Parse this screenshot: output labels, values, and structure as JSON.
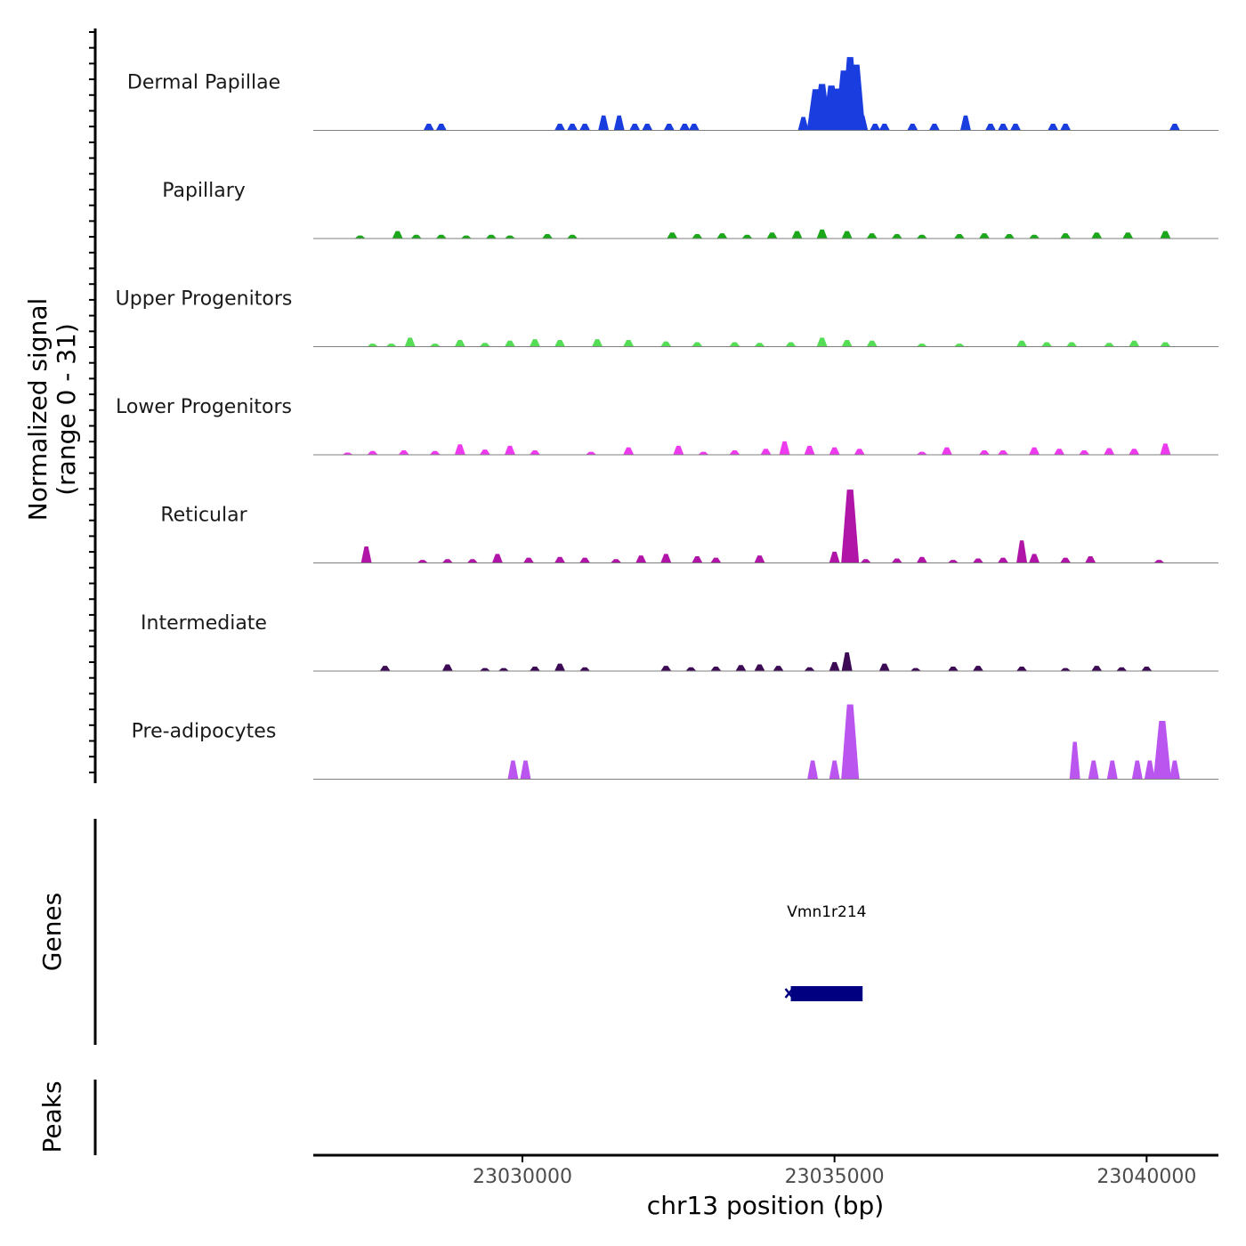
{
  "chart_data": {
    "type": "area",
    "title": "",
    "ylabel_line1": "Normalized signal",
    "ylabel_line2": "(range 0 - 31)",
    "genes_label": "Genes",
    "peaks_label": "Peaks",
    "xlabel": "chr13 position (bp)",
    "xlim": [
      23026650,
      23041150
    ],
    "ylim": [
      0,
      31
    ],
    "x_ticks": [
      23030000,
      23035000,
      23040000
    ],
    "x_tick_labels": [
      "23030000",
      "23035000",
      "23040000"
    ],
    "tracks": [
      {
        "name": "Dermal Papillae",
        "color": "#1a3de0",
        "peaks": [
          [
            23028500,
            0.09
          ],
          [
            23028700,
            0.09
          ],
          [
            23030600,
            0.09
          ],
          [
            23030800,
            0.09
          ],
          [
            23031000,
            0.09
          ],
          [
            23031300,
            0.2
          ],
          [
            23031550,
            0.2
          ],
          [
            23031800,
            0.09
          ],
          [
            23032000,
            0.09
          ],
          [
            23032350,
            0.09
          ],
          [
            23032600,
            0.09
          ],
          [
            23032750,
            0.09
          ],
          [
            23034500,
            0.18
          ],
          [
            23034700,
            0.55
          ],
          [
            23034800,
            0.62
          ],
          [
            23034950,
            0.6
          ],
          [
            23035050,
            0.56
          ],
          [
            23035150,
            0.8
          ],
          [
            23035250,
            0.98
          ],
          [
            23035350,
            0.88
          ],
          [
            23035450,
            0.2
          ],
          [
            23035650,
            0.09
          ],
          [
            23035800,
            0.09
          ],
          [
            23036250,
            0.09
          ],
          [
            23036600,
            0.09
          ],
          [
            23037100,
            0.2
          ],
          [
            23037500,
            0.09
          ],
          [
            23037700,
            0.09
          ],
          [
            23037900,
            0.09
          ],
          [
            23038500,
            0.09
          ],
          [
            23038700,
            0.09
          ],
          [
            23040450,
            0.09
          ]
        ]
      },
      {
        "name": "Papillary",
        "color": "#1aa81a",
        "peaks": [
          [
            23027400,
            0.04
          ],
          [
            23028000,
            0.1
          ],
          [
            23028300,
            0.05
          ],
          [
            23028700,
            0.05
          ],
          [
            23029100,
            0.04
          ],
          [
            23029500,
            0.05
          ],
          [
            23029800,
            0.04
          ],
          [
            23030400,
            0.06
          ],
          [
            23030800,
            0.05
          ],
          [
            23032400,
            0.08
          ],
          [
            23032800,
            0.06
          ],
          [
            23033200,
            0.07
          ],
          [
            23033600,
            0.05
          ],
          [
            23034000,
            0.08
          ],
          [
            23034400,
            0.1
          ],
          [
            23034800,
            0.12
          ],
          [
            23035200,
            0.1
          ],
          [
            23035600,
            0.07
          ],
          [
            23036000,
            0.06
          ],
          [
            23036400,
            0.05
          ],
          [
            23037000,
            0.06
          ],
          [
            23037400,
            0.07
          ],
          [
            23037800,
            0.06
          ],
          [
            23038200,
            0.05
          ],
          [
            23038700,
            0.07
          ],
          [
            23039200,
            0.08
          ],
          [
            23039700,
            0.08
          ],
          [
            23040300,
            0.1
          ]
        ]
      },
      {
        "name": "Upper Progenitors",
        "color": "#55dd55",
        "peaks": [
          [
            23027600,
            0.04
          ],
          [
            23027900,
            0.04
          ],
          [
            23028200,
            0.12
          ],
          [
            23028600,
            0.04
          ],
          [
            23029000,
            0.09
          ],
          [
            23029400,
            0.05
          ],
          [
            23029800,
            0.08
          ],
          [
            23030200,
            0.1
          ],
          [
            23030600,
            0.09
          ],
          [
            23031200,
            0.1
          ],
          [
            23031700,
            0.09
          ],
          [
            23032300,
            0.07
          ],
          [
            23032800,
            0.06
          ],
          [
            23033400,
            0.06
          ],
          [
            23033800,
            0.05
          ],
          [
            23034300,
            0.06
          ],
          [
            23034800,
            0.12
          ],
          [
            23035200,
            0.09
          ],
          [
            23035600,
            0.08
          ],
          [
            23036400,
            0.04
          ],
          [
            23037000,
            0.04
          ],
          [
            23038000,
            0.08
          ],
          [
            23038400,
            0.06
          ],
          [
            23038800,
            0.06
          ],
          [
            23039400,
            0.05
          ],
          [
            23039800,
            0.08
          ],
          [
            23040300,
            0.06
          ]
        ]
      },
      {
        "name": "Lower Progenitors",
        "color": "#ee3aee",
        "peaks": [
          [
            23027200,
            0.03
          ],
          [
            23027600,
            0.05
          ],
          [
            23028100,
            0.06
          ],
          [
            23028600,
            0.05
          ],
          [
            23029000,
            0.14
          ],
          [
            23029400,
            0.07
          ],
          [
            23029800,
            0.12
          ],
          [
            23030200,
            0.06
          ],
          [
            23031100,
            0.04
          ],
          [
            23031700,
            0.1
          ],
          [
            23032500,
            0.12
          ],
          [
            23032900,
            0.04
          ],
          [
            23033400,
            0.06
          ],
          [
            23033900,
            0.08
          ],
          [
            23034200,
            0.18
          ],
          [
            23034600,
            0.12
          ],
          [
            23035000,
            0.1
          ],
          [
            23035400,
            0.08
          ],
          [
            23036400,
            0.04
          ],
          [
            23036800,
            0.1
          ],
          [
            23037400,
            0.06
          ],
          [
            23037700,
            0.06
          ],
          [
            23038200,
            0.1
          ],
          [
            23038600,
            0.08
          ],
          [
            23039000,
            0.06
          ],
          [
            23039400,
            0.09
          ],
          [
            23039800,
            0.08
          ],
          [
            23040300,
            0.15
          ]
        ]
      },
      {
        "name": "Reticular",
        "color": "#b015a8",
        "peaks": [
          [
            23027500,
            0.22
          ],
          [
            23028400,
            0.04
          ],
          [
            23028800,
            0.05
          ],
          [
            23029200,
            0.05
          ],
          [
            23029600,
            0.12
          ],
          [
            23030100,
            0.07
          ],
          [
            23030600,
            0.08
          ],
          [
            23031000,
            0.07
          ],
          [
            23031500,
            0.05
          ],
          [
            23031900,
            0.1
          ],
          [
            23032300,
            0.12
          ],
          [
            23032800,
            0.09
          ],
          [
            23033100,
            0.07
          ],
          [
            23033800,
            0.1
          ],
          [
            23035000,
            0.15
          ],
          [
            23035250,
            0.98
          ],
          [
            23035500,
            0.05
          ],
          [
            23036000,
            0.06
          ],
          [
            23036400,
            0.08
          ],
          [
            23036900,
            0.04
          ],
          [
            23037300,
            0.06
          ],
          [
            23037700,
            0.07
          ],
          [
            23038000,
            0.3
          ],
          [
            23038200,
            0.12
          ],
          [
            23038700,
            0.07
          ],
          [
            23039100,
            0.09
          ],
          [
            23040200,
            0.04
          ]
        ]
      },
      {
        "name": "Intermediate",
        "color": "#3d0a55",
        "peaks": [
          [
            23027800,
            0.07
          ],
          [
            23028800,
            0.09
          ],
          [
            23029400,
            0.04
          ],
          [
            23029700,
            0.04
          ],
          [
            23030200,
            0.06
          ],
          [
            23030600,
            0.1
          ],
          [
            23031000,
            0.05
          ],
          [
            23032300,
            0.07
          ],
          [
            23032700,
            0.05
          ],
          [
            23033100,
            0.06
          ],
          [
            23033500,
            0.08
          ],
          [
            23033800,
            0.09
          ],
          [
            23034100,
            0.07
          ],
          [
            23034600,
            0.05
          ],
          [
            23035000,
            0.12
          ],
          [
            23035200,
            0.25
          ],
          [
            23035800,
            0.1
          ],
          [
            23036300,
            0.04
          ],
          [
            23036900,
            0.06
          ],
          [
            23037300,
            0.07
          ],
          [
            23038000,
            0.06
          ],
          [
            23038700,
            0.04
          ],
          [
            23039200,
            0.07
          ],
          [
            23039600,
            0.05
          ],
          [
            23040000,
            0.06
          ]
        ]
      },
      {
        "name": "Pre-adipocytes",
        "color": "#bb55f0",
        "peaks": [
          [
            23029850,
            0.25
          ],
          [
            23030050,
            0.25
          ],
          [
            23034650,
            0.25
          ],
          [
            23035000,
            0.25
          ],
          [
            23035250,
            1.0
          ],
          [
            23038850,
            0.5
          ],
          [
            23039150,
            0.25
          ],
          [
            23039450,
            0.25
          ],
          [
            23039850,
            0.25
          ],
          [
            23040050,
            0.25
          ],
          [
            23040250,
            0.78
          ],
          [
            23040450,
            0.25
          ]
        ]
      }
    ],
    "genes": [
      {
        "name": "Vmn1r214",
        "start": 23034300,
        "end": 23035450,
        "color": "#000080"
      }
    ]
  }
}
